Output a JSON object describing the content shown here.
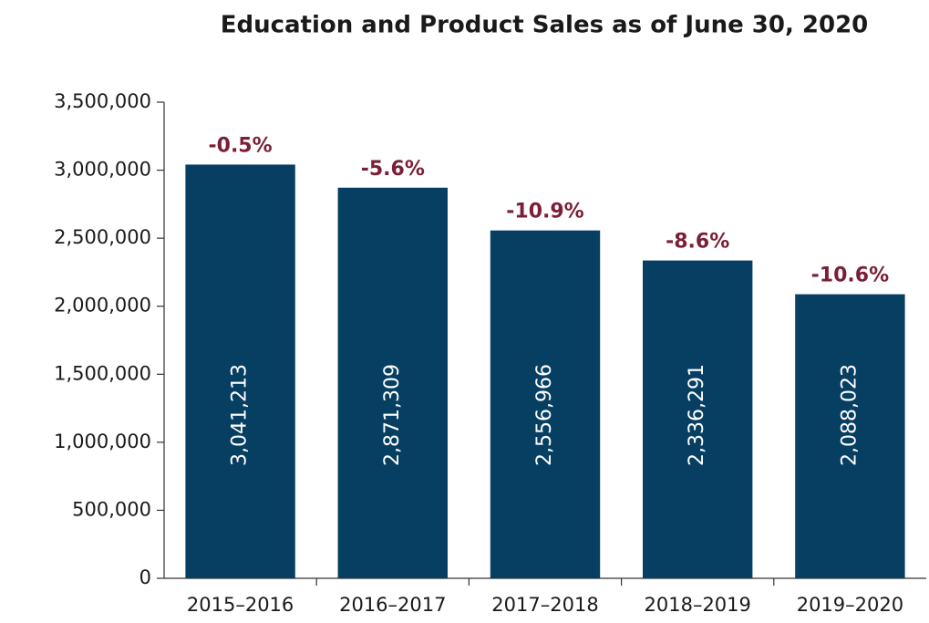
{
  "chart_data": {
    "type": "bar",
    "title": "Education and Product Sales as of June 30, 2020",
    "categories": [
      "2015–2016",
      "2016–2017",
      "2017–2018",
      "2018–2019",
      "2019–2020"
    ],
    "values": [
      3041213,
      2871309,
      2556966,
      2336291,
      2088023
    ],
    "value_labels": [
      "3,041,213",
      "2,871,309",
      "2,556,966",
      "2,336,291",
      "2,088,023"
    ],
    "annotations": [
      "-0.5%",
      "-5.6%",
      "-10.9%",
      "-8.6%",
      "-10.6%"
    ],
    "color": "#073f63",
    "annotation_color": "#7a1f35",
    "ylim": [
      0,
      3500000
    ],
    "yticks": [
      0,
      {
        "value": 500000,
        "label": "500,000"
      },
      {
        "value": 1000000,
        "label": "1,000,000"
      },
      {
        "value": 1500000,
        "label": "1,500,000"
      },
      {
        "value": 2000000,
        "label": "2,000,000"
      },
      {
        "value": 2500000,
        "label": "2,500,000"
      },
      {
        "value": 3000000,
        "label": "3,000,000"
      },
      {
        "value": 3500000,
        "label": "3,500,000"
      }
    ],
    "grid": false
  }
}
